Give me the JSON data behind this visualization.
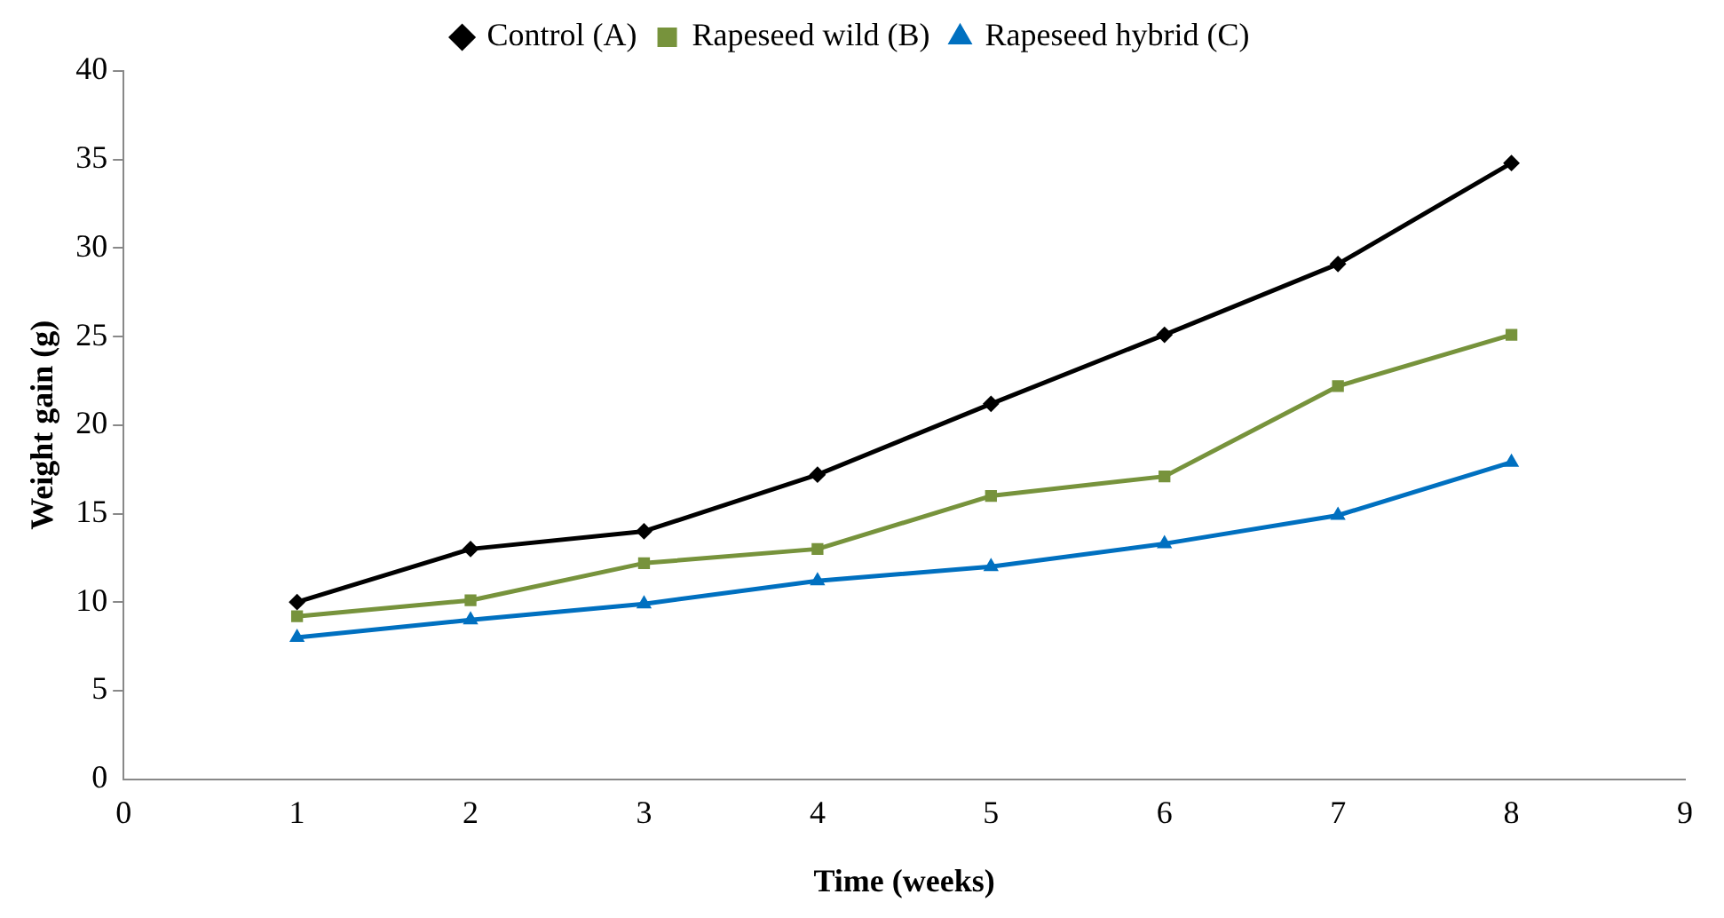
{
  "chart_data": {
    "type": "line",
    "xlabel": "Time (weeks)",
    "ylabel": "Weight gain (g)",
    "x": [
      1,
      2,
      3,
      4,
      5,
      6,
      7,
      8
    ],
    "series": [
      {
        "name": "Control (A)",
        "color": "#000000",
        "marker": "diamond",
        "values": [
          10,
          13,
          14,
          17.2,
          21.2,
          25.1,
          29.1,
          34.8
        ]
      },
      {
        "name": "Rapeseed wild (B)",
        "color": "#77933c",
        "marker": "square",
        "values": [
          9.2,
          10.1,
          12.2,
          13,
          16,
          17.1,
          22.2,
          25.1
        ]
      },
      {
        "name": "Rapeseed hybrid (C)",
        "color": "#0070c0",
        "marker": "triangle",
        "values": [
          8,
          9,
          9.9,
          11.2,
          12,
          13.3,
          14.9,
          17.9
        ]
      }
    ],
    "xlim": [
      0,
      9
    ],
    "xticks": [
      0,
      1,
      2,
      3,
      4,
      5,
      6,
      7,
      8,
      9
    ],
    "ylim": [
      0,
      40
    ],
    "yticks": [
      0,
      5,
      10,
      15,
      20,
      25,
      30,
      35,
      40
    ],
    "grid": false,
    "legend": "top",
    "line_style": "solid"
  }
}
